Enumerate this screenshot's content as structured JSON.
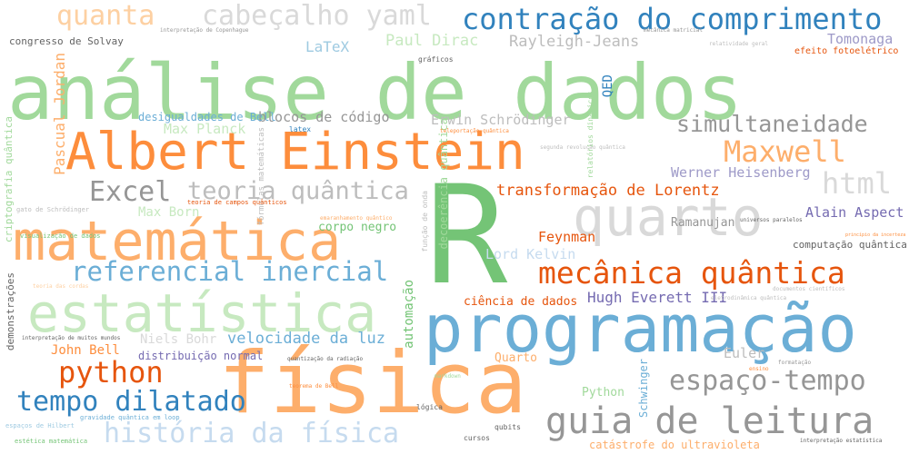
{
  "palette": {
    "green": "#74c476",
    "light_green": "#a1d99b",
    "pale_green": "#c7e9c0",
    "orange": "#fd8d3c",
    "dark_orange": "#e6550d",
    "peach": "#fdae6b",
    "pale_peach": "#fdd0a2",
    "blue": "#3182bd",
    "mid_blue": "#6baed6",
    "light_blue": "#9ecae1",
    "pale_blue": "#c6dbef",
    "purple": "#756bb1",
    "light_purple": "#9e9ac8",
    "grey": "#636363",
    "mid_grey": "#969696",
    "light_grey": "#bdbdbd",
    "pale_grey": "#d9d9d9"
  },
  "words": [
    {
      "text": "análise de dados",
      "color": "#a1d99b"
    },
    {
      "text": "R",
      "color": "#74c476"
    },
    {
      "text": "programação",
      "color": "#6baed6"
    },
    {
      "text": "física",
      "color": "#fdae6b"
    },
    {
      "text": "Albert Einstein",
      "color": "#fd8d3c"
    },
    {
      "text": "matemática",
      "color": "#fdae6b"
    },
    {
      "text": "estatística",
      "color": "#c7e9c0"
    },
    {
      "text": "quarto",
      "color": "#d9d9d9"
    },
    {
      "text": "guia de leitura",
      "color": "#969696"
    },
    {
      "text": "contração do comprimento",
      "color": "#3182bd"
    },
    {
      "text": "mecânica quântica",
      "color": "#e6550d"
    },
    {
      "text": "referencial inercial",
      "color": "#6baed6"
    },
    {
      "text": "cabeçalho yaml",
      "color": "#d9d9d9"
    },
    {
      "text": "quanta",
      "color": "#fdd0a2"
    },
    {
      "text": "espaço-tempo",
      "color": "#969696"
    },
    {
      "text": "história da física",
      "color": "#c6dbef"
    },
    {
      "text": "python",
      "color": "#e6550d"
    },
    {
      "text": "tempo dilatado",
      "color": "#3182bd"
    },
    {
      "text": "simultaneidade",
      "color": "#969696"
    },
    {
      "text": "Maxwell",
      "color": "#fdae6b"
    },
    {
      "text": "Excel",
      "color": "#969696"
    },
    {
      "text": "teoria quântica",
      "color": "#bdbdbd"
    },
    {
      "text": "html",
      "color": "#d9d9d9"
    },
    {
      "text": "transformação de Lorentz",
      "color": "#e6550d"
    },
    {
      "text": "velocidade da luz",
      "color": "#6baed6"
    },
    {
      "text": "Alain Aspect",
      "color": "#756bb1"
    },
    {
      "text": "Werner Heisenberg",
      "color": "#9e9ac8"
    },
    {
      "text": "Hugh Everett III",
      "color": "#756bb1"
    },
    {
      "text": "Rayleigh-Jeans",
      "color": "#bdbdbd"
    },
    {
      "text": "Paul Dirac",
      "color": "#c7e9c0"
    },
    {
      "text": "LaTeX",
      "color": "#9ecae1"
    },
    {
      "text": "Tomonaga",
      "color": "#9e9ac8"
    },
    {
      "text": "efeito fotoelétrico",
      "color": "#e6550d"
    },
    {
      "text": "congresso de Solvay",
      "color": "#636363"
    },
    {
      "text": "blocos de código",
      "color": "#969696"
    },
    {
      "text": "Erwin Schrödinger",
      "color": "#bdbdbd"
    },
    {
      "text": "desigualdades de Bell",
      "color": "#6baed6"
    },
    {
      "text": "Max Planck",
      "color": "#c7e9c0"
    },
    {
      "text": "Max Born",
      "color": "#c7e9c0"
    },
    {
      "text": "corpo negro",
      "color": "#74c476"
    },
    {
      "text": "Feynman",
      "color": "#e6550d"
    },
    {
      "text": "Lord Kelvin",
      "color": "#c6dbef"
    },
    {
      "text": "ciência de dados",
      "color": "#e6550d"
    },
    {
      "text": "Ramanujan",
      "color": "#969696"
    },
    {
      "text": "computação quântica",
      "color": "#636363"
    },
    {
      "text": "Niels Bohr",
      "color": "#d9d9d9"
    },
    {
      "text": "John Bell",
      "color": "#fd8d3c"
    },
    {
      "text": "distribuição normal",
      "color": "#756bb1"
    },
    {
      "text": "Quarto",
      "color": "#fdae6b"
    },
    {
      "text": "Python",
      "color": "#a1d99b"
    },
    {
      "text": "Euler",
      "color": "#bdbdbd"
    },
    {
      "text": "catástrofe do ultravioleta",
      "color": "#fdae6b"
    },
    {
      "text": "QED",
      "color": "#3182bd"
    },
    {
      "text": "automação",
      "color": "#74c476"
    },
    {
      "text": "Schwinger",
      "color": "#6baed6"
    },
    {
      "text": "Pascual Jordan",
      "color": "#fdae6b"
    },
    {
      "text": "criptografia quântica",
      "color": "#a1d99b"
    },
    {
      "text": "demonstrações",
      "color": "#636363"
    },
    {
      "text": "decoerência quântica",
      "color": "#a1d99b"
    },
    {
      "text": "gráficos",
      "color": "#636363"
    },
    {
      "text": "latex",
      "color": "#3182bd"
    },
    {
      "text": "cursos",
      "color": "#636363"
    },
    {
      "text": "qubits",
      "color": "#636363"
    },
    {
      "text": "lógica",
      "color": "#636363"
    },
    {
      "text": "teoria de campos quânticos",
      "color": "#e6550d"
    },
    {
      "text": "visualização de dados",
      "color": "#74c476"
    },
    {
      "text": "gato de Schrödinger",
      "color": "#bdbdbd"
    },
    {
      "text": "interpretação de Copenhague",
      "color": "#969696"
    },
    {
      "text": "mecânica matricial",
      "color": "#969696"
    },
    {
      "text": "relatividade geral",
      "color": "#bdbdbd"
    },
    {
      "text": "teleportação quântica",
      "color": "#fd8d3c"
    },
    {
      "text": "emaranhamento quântico",
      "color": "#fdae6b"
    },
    {
      "text": "interpretação de muitos mundos",
      "color": "#636363"
    },
    {
      "text": "quantização da radiação",
      "color": "#636363"
    },
    {
      "text": "teoria das cordas",
      "color": "#fdd0a2"
    },
    {
      "text": "espaços de Hilbert",
      "color": "#9ecae1"
    },
    {
      "text": "gravidade quântica em loop",
      "color": "#6baed6"
    },
    {
      "text": "estética matemática",
      "color": "#74c476"
    },
    {
      "text": "interpretação estatística",
      "color": "#636363"
    },
    {
      "text": "documentos científicos",
      "color": "#bdbdbd"
    },
    {
      "text": "eletrodinâmica quântica",
      "color": "#bdbdbd"
    },
    {
      "text": "princípio da incerteza",
      "color": "#fd8d3c"
    },
    {
      "text": "universos paralelos",
      "color": "#636363"
    },
    {
      "text": "teorema de Bell",
      "color": "#fd8d3c"
    },
    {
      "text": "markdown",
      "color": "#a1d99b"
    },
    {
      "text": "formatação",
      "color": "#969696"
    },
    {
      "text": "ensino",
      "color": "#fd8d3c"
    },
    {
      "text": "segunda revolução quântica",
      "color": "#bdbdbd"
    },
    {
      "text": "função de onda",
      "color": "#bdbdbd"
    },
    {
      "text": "fórmulas matemáticas",
      "color": "#a1d99b"
    },
    {
      "text": "relatórios dinâmicos",
      "color": "#bdbdbd"
    }
  ]
}
